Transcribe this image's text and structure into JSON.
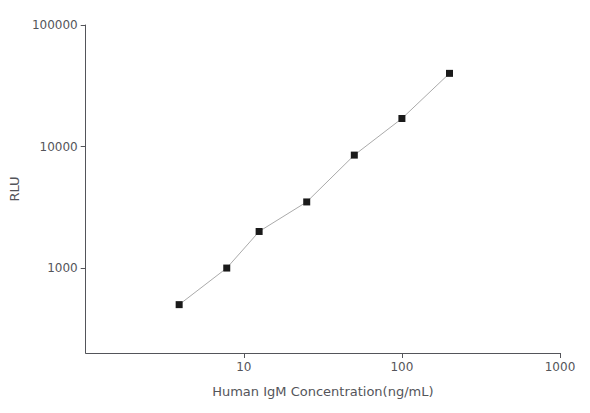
{
  "chart_data": {
    "type": "line",
    "x": [
      3.9,
      7.8,
      12.5,
      25,
      50,
      100,
      200
    ],
    "values": [
      500,
      1000,
      2000,
      3500,
      8500,
      17000,
      40000
    ],
    "xlabel": "Human IgM Concentration(ng/mL)",
    "ylabel": "RLU",
    "log": true,
    "xlim": [
      1,
      1000
    ],
    "xticks": [
      10,
      100,
      1000
    ],
    "ylim": [
      200,
      100000
    ],
    "yticks": [
      1000,
      10000,
      100000
    ],
    "grid": false,
    "color": "#1a1a1a",
    "marker": "square",
    "line_style": "solid"
  }
}
